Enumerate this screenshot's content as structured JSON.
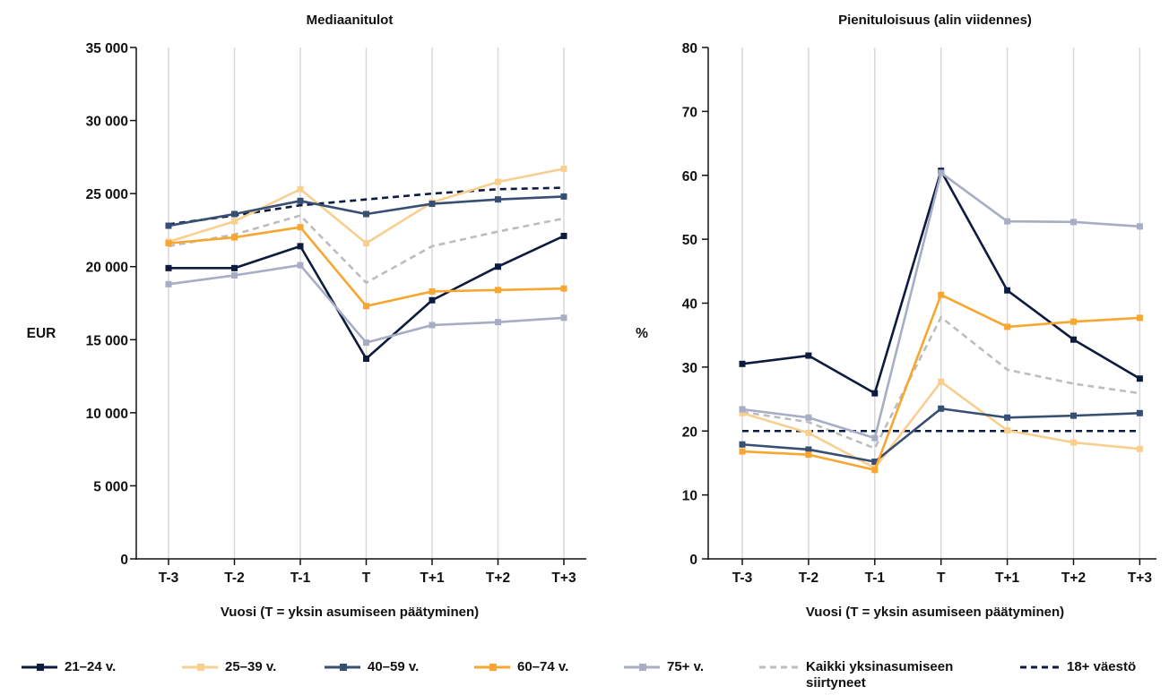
{
  "chart_data": [
    {
      "type": "line",
      "title": "Mediaanitulot",
      "xlabel": "Vuosi (T = yksin asumiseen päätyminen)",
      "ylabel": "EUR",
      "categories": [
        "T-3",
        "T-2",
        "T-1",
        "T",
        "T+1",
        "T+2",
        "T+3"
      ],
      "ylim": [
        0,
        35000
      ],
      "yticks": [
        0,
        5000,
        10000,
        15000,
        20000,
        25000,
        30000,
        35000
      ],
      "ytick_labels": [
        "0",
        "5 000",
        "10 000",
        "15 000",
        "20 000",
        "25 000",
        "30 000",
        "35 000"
      ],
      "grid": "vertical",
      "series": [
        {
          "name": "21–24 v.",
          "color": "#0d1b3e",
          "style": "solid",
          "marker": true,
          "values": [
            19900,
            19900,
            21400,
            13700,
            17700,
            20000,
            22100
          ]
        },
        {
          "name": "25–39 v.",
          "color": "#f9cf8f",
          "style": "solid",
          "marker": true,
          "values": [
            21700,
            23100,
            25300,
            21600,
            24400,
            25800,
            26700
          ]
        },
        {
          "name": "40–59 v.",
          "color": "#364f73",
          "style": "solid",
          "marker": true,
          "values": [
            22800,
            23600,
            24500,
            23600,
            24300,
            24600,
            24800
          ]
        },
        {
          "name": "60–74 v.",
          "color": "#f7a631",
          "style": "solid",
          "marker": true,
          "values": [
            21600,
            22000,
            22700,
            17300,
            18300,
            18400,
            18500
          ]
        },
        {
          "name": "75+ v.",
          "color": "#a6adc4",
          "style": "solid",
          "marker": true,
          "values": [
            18800,
            19400,
            20100,
            14800,
            16000,
            16200,
            16500
          ]
        },
        {
          "name": "Kaikki yksinasumiseen siirtyneet",
          "color": "#bdbdbd",
          "style": "dashed",
          "marker": false,
          "values": [
            21400,
            22200,
            23500,
            18900,
            21400,
            22400,
            23300
          ]
        },
        {
          "name": "18+ väestö",
          "color": "#0d1b3e",
          "style": "dashed",
          "marker": false,
          "values": [
            22900,
            23500,
            24200,
            24600,
            25000,
            25300,
            25400
          ]
        }
      ]
    },
    {
      "type": "line",
      "title": "Pienituloisuus (alin viidennes)",
      "xlabel": "Vuosi (T = yksin asumiseen päätyminen)",
      "ylabel": "%",
      "categories": [
        "T-3",
        "T-2",
        "T-1",
        "T",
        "T+1",
        "T+2",
        "T+3"
      ],
      "ylim": [
        0,
        80
      ],
      "yticks": [
        0,
        10,
        20,
        30,
        40,
        50,
        60,
        70,
        80
      ],
      "ytick_labels": [
        "0",
        "10",
        "20",
        "30",
        "40",
        "50",
        "60",
        "70",
        "80"
      ],
      "grid": "vertical",
      "series": [
        {
          "name": "21–24 v.",
          "color": "#0d1b3e",
          "style": "solid",
          "marker": true,
          "values": [
            30.5,
            31.8,
            25.9,
            60.7,
            42.0,
            34.3,
            28.2
          ]
        },
        {
          "name": "25–39 v.",
          "color": "#f9cf8f",
          "style": "solid",
          "marker": true,
          "values": [
            22.8,
            19.7,
            14.2,
            27.7,
            20.1,
            18.2,
            17.2
          ]
        },
        {
          "name": "40–59 v.",
          "color": "#364f73",
          "style": "solid",
          "marker": true,
          "values": [
            17.9,
            17.1,
            15.2,
            23.5,
            22.1,
            22.4,
            22.8
          ]
        },
        {
          "name": "60–74 v.",
          "color": "#f7a631",
          "style": "solid",
          "marker": true,
          "values": [
            16.8,
            16.3,
            13.9,
            41.3,
            36.3,
            37.1,
            37.7
          ]
        },
        {
          "name": "75+ v.",
          "color": "#a6adc4",
          "style": "solid",
          "marker": true,
          "values": [
            23.4,
            22.1,
            18.9,
            60.4,
            52.8,
            52.7,
            52.0
          ]
        },
        {
          "name": "Kaikki yksinasumiseen siirtyneet",
          "color": "#bdbdbd",
          "style": "dashed",
          "marker": false,
          "values": [
            23.0,
            21.4,
            17.3,
            37.8,
            29.6,
            27.4,
            25.9
          ]
        },
        {
          "name": "18+ väestö",
          "color": "#0d1b3e",
          "style": "dashed",
          "marker": false,
          "values": [
            20.0,
            20.0,
            20.0,
            20.0,
            20.0,
            20.0,
            20.0
          ]
        }
      ]
    }
  ],
  "legend": [
    {
      "label": "21–24 v.",
      "color": "#0d1b3e",
      "style": "solid",
      "marker": true
    },
    {
      "label": "25–39 v.",
      "color": "#f9cf8f",
      "style": "solid",
      "marker": true
    },
    {
      "label": "40–59 v.",
      "color": "#364f73",
      "style": "solid",
      "marker": true
    },
    {
      "label": "60–74 v.",
      "color": "#f7a631",
      "style": "solid",
      "marker": true
    },
    {
      "label": "75+ v.",
      "color": "#a6adc4",
      "style": "solid",
      "marker": true
    },
    {
      "label": "Kaikki yksinasumiseen siirtyneet",
      "color": "#bdbdbd",
      "style": "dashed",
      "marker": false
    },
    {
      "label": "18+ väestö",
      "color": "#0d1b3e",
      "style": "dashed",
      "marker": false
    }
  ]
}
